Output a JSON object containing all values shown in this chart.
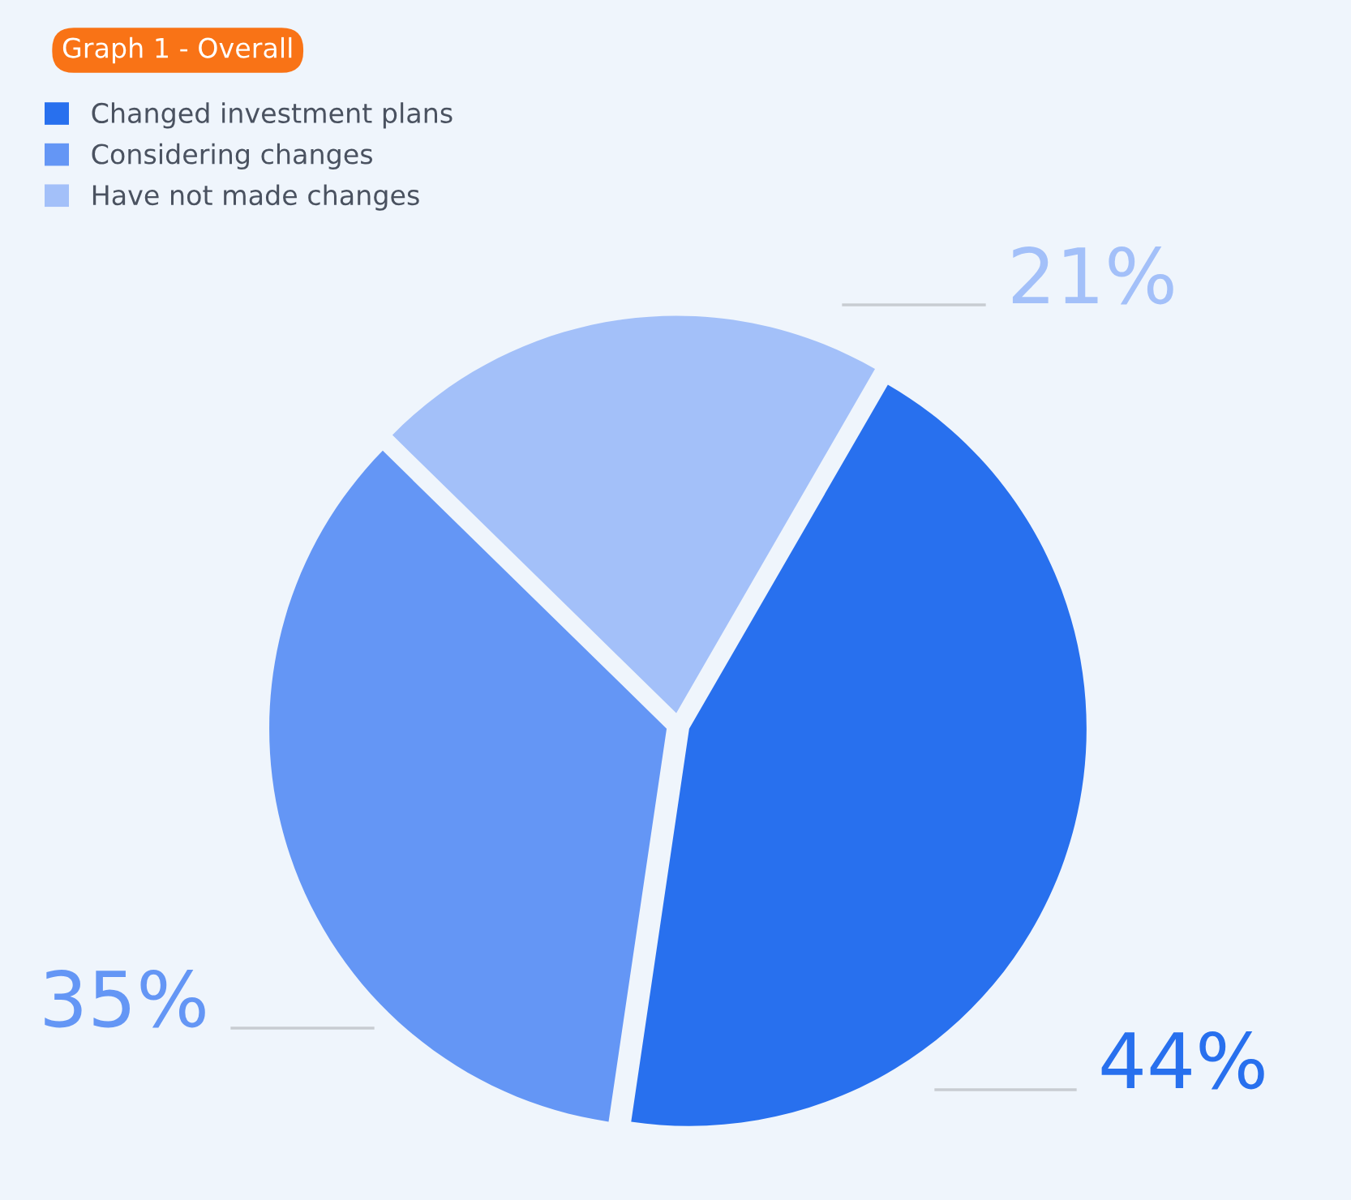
{
  "chart_data": {
    "type": "pie",
    "title": "Graph 1 - Overall",
    "categories": [
      "Changed investment plans",
      "Considering changes",
      "Have not made changes"
    ],
    "values": [
      44,
      35,
      21
    ],
    "colors": [
      "#2870ee",
      "#6496f5",
      "#a3c0f9"
    ],
    "value_labels": [
      "44%",
      "35%",
      "21%"
    ],
    "legend": "top left"
  }
}
